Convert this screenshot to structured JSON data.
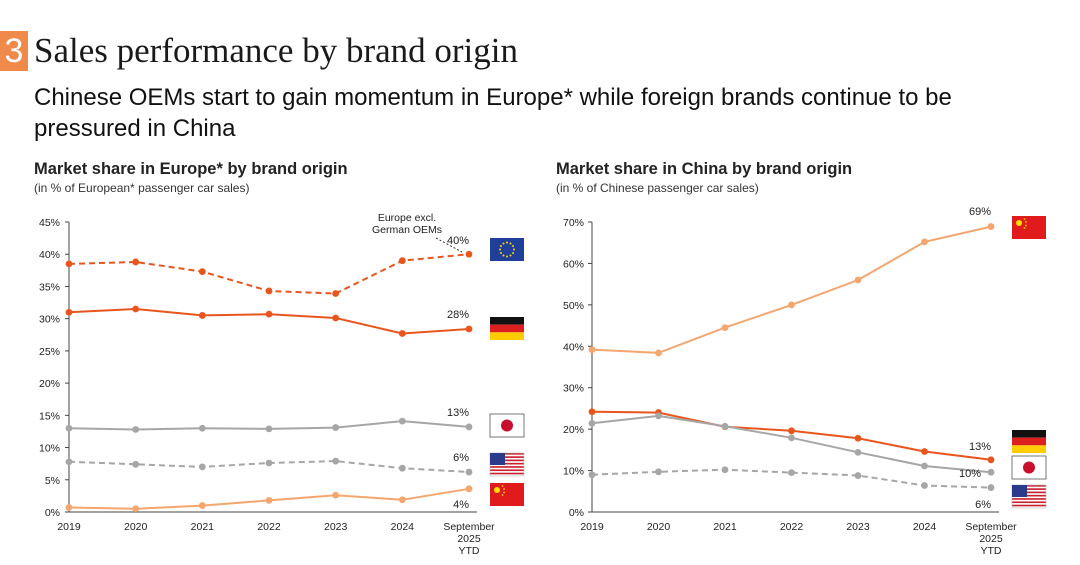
{
  "header": {
    "number": "3",
    "title": "Sales performance by brand origin"
  },
  "subtitle": "Chinese OEMs start to gain momentum in Europe* while foreign brands continue to be pressured in China",
  "colors": {
    "accent": "#f08a4b",
    "dark_orange": "#e8561e",
    "light_orange": "#f4a66e",
    "gray": "#a6a6a6",
    "gray_dash": "#a6a6a6"
  },
  "chart_data": [
    {
      "type": "line",
      "title": "Market share in Europe* by brand origin",
      "subtitle": "(in % of European* passenger car sales)",
      "categories": [
        "2019",
        "2020",
        "2021",
        "2022",
        "2023",
        "2024",
        "September 2025 YTD"
      ],
      "category_labels": [
        [
          "2019"
        ],
        [
          "2020"
        ],
        [
          "2021"
        ],
        [
          "2022"
        ],
        [
          "2023"
        ],
        [
          "2024"
        ],
        [
          "September",
          "2025",
          "YTD"
        ]
      ],
      "ylim": [
        0,
        45
      ],
      "yticks": [
        "0%",
        "5%",
        "10%",
        "15%",
        "20%",
        "25%",
        "30%",
        "35%",
        "40%",
        "45%"
      ],
      "annotation": [
        "Europe excl.",
        "German OEMs"
      ],
      "series": [
        {
          "name": "Europe excl. German OEMs",
          "flag": "eu",
          "dashed": true,
          "color": "#e8561e",
          "values": [
            38.5,
            38.8,
            37.3,
            34.3,
            33.9,
            39.0,
            40.0
          ],
          "end_label": "40%"
        },
        {
          "name": "Germany",
          "flag": "de",
          "dashed": false,
          "color": "#e8561e",
          "values": [
            31.0,
            31.5,
            30.5,
            30.7,
            30.1,
            27.7,
            28.4
          ],
          "end_label": "28%"
        },
        {
          "name": "Japan",
          "flag": "jp",
          "dashed": false,
          "color": "#a6a6a6",
          "values": [
            13.0,
            12.8,
            13.0,
            12.9,
            13.1,
            14.1,
            13.2
          ],
          "end_label": "13%"
        },
        {
          "name": "USA",
          "flag": "us",
          "dashed": true,
          "color": "#a6a6a6",
          "values": [
            7.8,
            7.4,
            7.0,
            7.6,
            7.9,
            6.8,
            6.2
          ],
          "end_label": "6%"
        },
        {
          "name": "China",
          "flag": "cn",
          "dashed": false,
          "color": "#f4a66e",
          "values": [
            0.7,
            0.5,
            1.0,
            1.8,
            2.6,
            1.9,
            3.6
          ],
          "end_label": "4%"
        }
      ]
    },
    {
      "type": "line",
      "title": "Market share in China by brand origin",
      "subtitle": "(in % of Chinese passenger car sales)",
      "categories": [
        "2019",
        "2020",
        "2021",
        "2022",
        "2023",
        "2024",
        "September 2025 YTD"
      ],
      "category_labels": [
        [
          "2019"
        ],
        [
          "2020"
        ],
        [
          "2021"
        ],
        [
          "2022"
        ],
        [
          "2023"
        ],
        [
          "2024"
        ],
        [
          "September",
          "2025",
          "YTD"
        ]
      ],
      "ylim": [
        0,
        70
      ],
      "yticks": [
        "0%",
        "10%",
        "20%",
        "30%",
        "40%",
        "50%",
        "60%",
        "70%"
      ],
      "series": [
        {
          "name": "China",
          "flag": "cn",
          "dashed": false,
          "color": "#f4a66e",
          "values": [
            39.2,
            38.4,
            44.5,
            50.0,
            56.0,
            65.2,
            68.9
          ],
          "end_label": "69%"
        },
        {
          "name": "Germany",
          "flag": "de",
          "dashed": false,
          "color": "#e8561e",
          "values": [
            24.2,
            24.0,
            20.6,
            19.6,
            17.8,
            14.6,
            12.6
          ],
          "end_label": "13%"
        },
        {
          "name": "Japan",
          "flag": "jp",
          "dashed": false,
          "color": "#a6a6a6",
          "values": [
            21.4,
            23.2,
            20.7,
            17.9,
            14.4,
            11.1,
            9.6
          ],
          "end_label": "10%"
        },
        {
          "name": "USA",
          "flag": "us",
          "dashed": true,
          "color": "#a6a6a6",
          "values": [
            9.0,
            9.7,
            10.2,
            9.5,
            8.8,
            6.4,
            5.9
          ],
          "end_label": "6%"
        }
      ]
    }
  ]
}
